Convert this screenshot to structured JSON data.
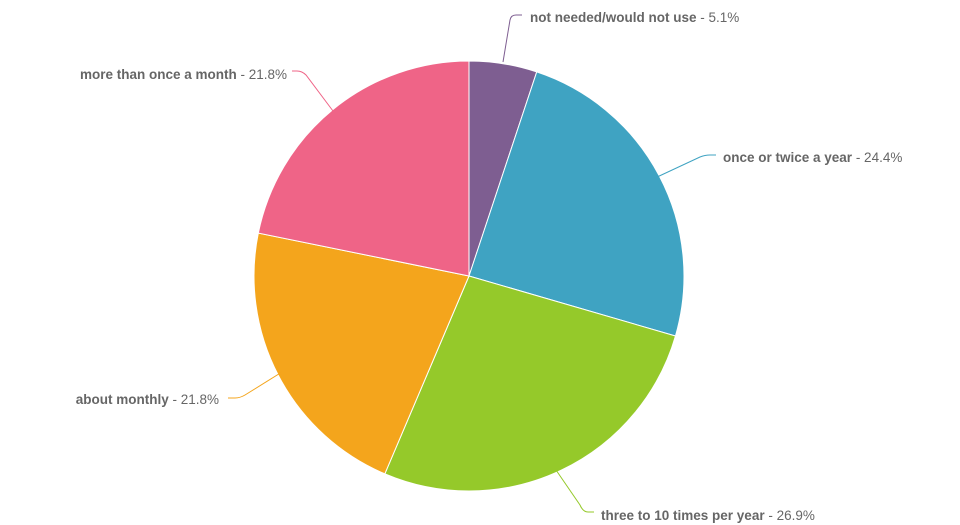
{
  "chart_data": {
    "type": "pie",
    "start_angle_deg": 0,
    "direction": "clockwise",
    "slices": [
      {
        "label": "not needed/would not use",
        "value": 5.1,
        "value_text": "5.1%",
        "color": "#7E5E91"
      },
      {
        "label": "once or twice a year",
        "value": 24.4,
        "value_text": "24.4%",
        "color": "#3FA3C2"
      },
      {
        "label": "three to 10 times per year",
        "value": 26.9,
        "value_text": "26.9%",
        "color": "#95C92A"
      },
      {
        "label": "about monthly",
        "value": 21.8,
        "value_text": "21.8%",
        "color": "#F4A51C"
      },
      {
        "label": "more than once a month",
        "value": 21.8,
        "value_text": "21.8%",
        "color": "#EF6487"
      }
    ]
  }
}
